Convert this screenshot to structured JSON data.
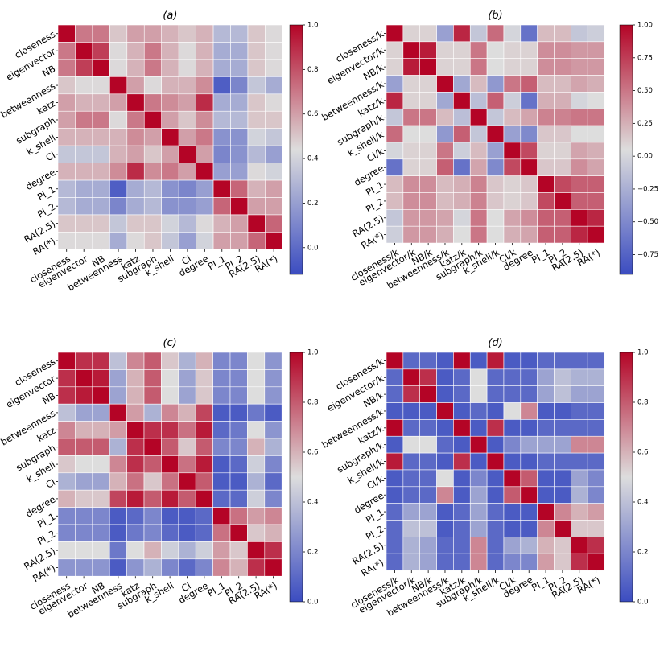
{
  "colors": {
    "low": "#3b4cc0",
    "mid": "#dddddd",
    "high": "#b40426",
    "grid": "#ffffff"
  },
  "chart_data": [
    {
      "type": "heatmap",
      "title": "(a)",
      "labels": [
        "closeness",
        "eigenvector",
        "NB",
        "betweenness",
        "katz",
        "subgraph",
        "k_shell",
        "CI",
        "degree",
        "PI_1",
        "PI_2",
        "RA(2.5)",
        "RA(*)"
      ],
      "colorbar": {
        "min": -0.12,
        "max": 1.0,
        "ticks": [
          0.0,
          0.2,
          0.4,
          0.6,
          0.8,
          1.0
        ],
        "tick_labels": [
          "0.0",
          "0.2",
          "0.4",
          "0.6",
          "0.8",
          "1.0"
        ]
      },
      "matrix": [
        [
          1.0,
          0.7,
          0.7,
          0.5,
          0.6,
          0.6,
          0.55,
          0.5,
          0.55,
          0.3,
          0.3,
          0.5,
          0.45
        ],
        [
          0.7,
          1.0,
          0.85,
          0.45,
          0.55,
          0.7,
          0.55,
          0.45,
          0.55,
          0.25,
          0.25,
          0.5,
          0.45
        ],
        [
          0.7,
          0.85,
          1.0,
          0.45,
          0.55,
          0.7,
          0.55,
          0.45,
          0.55,
          0.25,
          0.25,
          0.5,
          0.45
        ],
        [
          0.5,
          0.45,
          0.45,
          1.0,
          0.6,
          0.45,
          0.55,
          0.55,
          0.65,
          -0.05,
          0.1,
          0.35,
          0.25
        ],
        [
          0.6,
          0.55,
          0.55,
          0.6,
          1.0,
          0.7,
          0.65,
          0.6,
          0.9,
          0.25,
          0.25,
          0.5,
          0.45
        ],
        [
          0.6,
          0.7,
          0.7,
          0.45,
          0.7,
          1.0,
          0.6,
          0.5,
          0.65,
          0.3,
          0.3,
          0.5,
          0.5
        ],
        [
          0.55,
          0.55,
          0.55,
          0.55,
          0.65,
          0.6,
          1.0,
          0.6,
          0.7,
          0.15,
          0.15,
          0.4,
          0.35
        ],
        [
          0.35,
          0.35,
          0.35,
          0.55,
          0.6,
          0.5,
          0.6,
          1.0,
          0.6,
          0.1,
          0.15,
          0.3,
          0.2
        ],
        [
          0.55,
          0.55,
          0.55,
          0.65,
          0.9,
          0.65,
          0.7,
          0.6,
          1.0,
          0.2,
          0.2,
          0.45,
          0.4
        ],
        [
          0.3,
          0.25,
          0.25,
          -0.05,
          0.25,
          0.3,
          0.15,
          0.1,
          0.2,
          1.0,
          0.75,
          0.55,
          0.6
        ],
        [
          0.3,
          0.25,
          0.25,
          0.1,
          0.25,
          0.3,
          0.15,
          0.15,
          0.2,
          0.75,
          1.0,
          0.6,
          0.6
        ],
        [
          0.5,
          0.5,
          0.5,
          0.35,
          0.5,
          0.5,
          0.4,
          0.3,
          0.45,
          0.55,
          0.6,
          1.0,
          0.75
        ],
        [
          0.45,
          0.45,
          0.45,
          0.25,
          0.45,
          0.5,
          0.35,
          0.2,
          0.4,
          0.6,
          0.6,
          0.75,
          1.0
        ]
      ]
    },
    {
      "type": "heatmap",
      "title": "(b)",
      "labels": [
        "closeness/k",
        "eigenvector/k",
        "NB/k",
        "betweenness/k",
        "katz/k",
        "subgraph/k",
        "k_shell/k",
        "CI/k",
        "degree",
        "PI_1",
        "PI_2",
        "RA(2.5)",
        "RA(*)"
      ],
      "colorbar": {
        "min": -0.9,
        "max": 1.0,
        "ticks": [
          -0.75,
          -0.5,
          -0.25,
          0.0,
          0.25,
          0.5,
          0.75,
          1.0
        ],
        "tick_labels": [
          "−0.75",
          "−0.50",
          "−0.25",
          "0.00",
          "0.25",
          "0.50",
          "0.75",
          "1.00"
        ]
      },
      "matrix": [
        [
          1.0,
          0.1,
          0.1,
          -0.35,
          0.85,
          -0.1,
          0.55,
          0.0,
          -0.65,
          0.2,
          0.2,
          -0.1,
          -0.05
        ],
        [
          0.1,
          1.0,
          0.9,
          0.1,
          0.1,
          0.5,
          0.05,
          0.1,
          0.1,
          0.4,
          0.4,
          0.35,
          0.35
        ],
        [
          0.1,
          0.9,
          1.0,
          0.1,
          0.1,
          0.5,
          0.05,
          0.1,
          0.1,
          0.4,
          0.4,
          0.35,
          0.35
        ],
        [
          -0.35,
          0.1,
          0.1,
          1.0,
          -0.3,
          0.2,
          -0.4,
          0.5,
          0.6,
          0.2,
          0.2,
          0.3,
          0.25
        ],
        [
          0.85,
          0.1,
          0.1,
          -0.3,
          1.0,
          -0.15,
          0.6,
          -0.05,
          -0.65,
          0.25,
          0.25,
          0.0,
          0.05
        ],
        [
          -0.1,
          0.5,
          0.5,
          0.2,
          -0.15,
          1.0,
          -0.1,
          0.2,
          0.3,
          0.45,
          0.45,
          0.5,
          0.5
        ],
        [
          0.55,
          0.05,
          0.05,
          -0.4,
          0.6,
          -0.1,
          1.0,
          -0.35,
          -0.5,
          0.15,
          0.15,
          0.05,
          0.05
        ],
        [
          0.0,
          0.1,
          0.1,
          0.5,
          -0.05,
          0.2,
          -0.35,
          1.0,
          0.7,
          0.1,
          0.1,
          0.3,
          0.25
        ],
        [
          -0.65,
          0.1,
          0.1,
          0.6,
          -0.65,
          0.3,
          -0.5,
          0.7,
          1.0,
          0.15,
          0.15,
          0.4,
          0.3
        ],
        [
          0.2,
          0.4,
          0.4,
          0.2,
          0.25,
          0.45,
          0.15,
          0.1,
          0.15,
          1.0,
          0.7,
          0.6,
          0.6
        ],
        [
          0.2,
          0.4,
          0.4,
          0.2,
          0.25,
          0.45,
          0.15,
          0.1,
          0.15,
          0.7,
          1.0,
          0.6,
          0.6
        ],
        [
          -0.1,
          0.35,
          0.35,
          0.3,
          0.0,
          0.5,
          0.05,
          0.3,
          0.4,
          0.6,
          0.6,
          1.0,
          0.85
        ],
        [
          -0.05,
          0.35,
          0.35,
          0.25,
          0.05,
          0.5,
          0.05,
          0.25,
          0.3,
          0.6,
          0.6,
          0.85,
          1.0
        ]
      ]
    },
    {
      "type": "heatmap",
      "title": "(c)",
      "labels": [
        "closeness",
        "eigenvector",
        "NB",
        "betweenness",
        "katz",
        "subgraph",
        "k_shell",
        "CI",
        "degree",
        "PI_1",
        "PI_2",
        "RA(2.5)",
        "RA(*)"
      ],
      "colorbar": {
        "min": 0.0,
        "max": 1.0,
        "ticks": [
          0.0,
          0.2,
          0.4,
          0.6,
          0.8,
          1.0
        ],
        "tick_labels": [
          "0.0",
          "0.2",
          "0.4",
          "0.6",
          "0.8",
          "1.0"
        ]
      },
      "matrix": [
        [
          1.0,
          0.9,
          0.9,
          0.4,
          0.7,
          0.8,
          0.55,
          0.35,
          0.6,
          0.2,
          0.2,
          0.5,
          0.25
        ],
        [
          0.9,
          1.0,
          0.95,
          0.3,
          0.6,
          0.8,
          0.5,
          0.3,
          0.55,
          0.2,
          0.2,
          0.5,
          0.25
        ],
        [
          0.9,
          0.95,
          1.0,
          0.3,
          0.6,
          0.8,
          0.5,
          0.3,
          0.55,
          0.2,
          0.2,
          0.5,
          0.25
        ],
        [
          0.4,
          0.3,
          0.3,
          1.0,
          0.65,
          0.35,
          0.7,
          0.6,
          0.85,
          0.05,
          0.05,
          0.15,
          0.05
        ],
        [
          0.7,
          0.6,
          0.6,
          0.65,
          1.0,
          0.9,
          0.9,
          0.75,
          0.95,
          0.1,
          0.15,
          0.5,
          0.25
        ],
        [
          0.8,
          0.8,
          0.8,
          0.35,
          0.9,
          1.0,
          0.8,
          0.55,
          0.8,
          0.2,
          0.2,
          0.6,
          0.35
        ],
        [
          0.55,
          0.5,
          0.5,
          0.7,
          0.9,
          0.8,
          1.0,
          0.75,
          0.95,
          0.05,
          0.1,
          0.45,
          0.2
        ],
        [
          0.35,
          0.3,
          0.3,
          0.6,
          0.75,
          0.55,
          0.75,
          1.0,
          0.8,
          0.05,
          0.05,
          0.35,
          0.1
        ],
        [
          0.6,
          0.55,
          0.55,
          0.85,
          0.95,
          0.8,
          0.95,
          0.8,
          1.0,
          0.1,
          0.1,
          0.45,
          0.2
        ],
        [
          0.2,
          0.2,
          0.2,
          0.05,
          0.1,
          0.2,
          0.05,
          0.05,
          0.1,
          1.0,
          0.75,
          0.65,
          0.7
        ],
        [
          0.2,
          0.2,
          0.2,
          0.05,
          0.15,
          0.2,
          0.1,
          0.05,
          0.1,
          0.75,
          1.0,
          0.55,
          0.6
        ],
        [
          0.5,
          0.5,
          0.5,
          0.15,
          0.5,
          0.6,
          0.45,
          0.35,
          0.45,
          0.65,
          0.55,
          1.0,
          0.9
        ],
        [
          0.25,
          0.25,
          0.25,
          0.05,
          0.25,
          0.35,
          0.2,
          0.1,
          0.2,
          0.7,
          0.6,
          0.9,
          1.0
        ]
      ]
    },
    {
      "type": "heatmap",
      "title": "(d)",
      "labels": [
        "closeness/k",
        "eigenvector/k",
        "NB/k",
        "betweenness/k",
        "katz/k",
        "subgraph/k",
        "k_shell/k",
        "CI/k",
        "degree",
        "PI_1",
        "PI_2",
        "RA(2.5)",
        "RA(*)"
      ],
      "colorbar": {
        "min": 0.0,
        "max": 1.0,
        "ticks": [
          0.0,
          0.2,
          0.4,
          0.6,
          0.8,
          1.0
        ],
        "tick_labels": [
          "0.0",
          "0.2",
          "0.4",
          "0.6",
          "0.8",
          "1.0"
        ]
      },
      "matrix": [
        [
          1.0,
          0.1,
          0.1,
          0.05,
          1.0,
          0.05,
          0.95,
          0.05,
          0.05,
          0.1,
          0.1,
          0.1,
          0.1
        ],
        [
          0.1,
          1.0,
          0.9,
          0.05,
          0.1,
          0.5,
          0.1,
          0.1,
          0.1,
          0.3,
          0.4,
          0.35,
          0.35
        ],
        [
          0.1,
          0.9,
          1.0,
          0.05,
          0.1,
          0.5,
          0.1,
          0.1,
          0.1,
          0.3,
          0.4,
          0.3,
          0.3
        ],
        [
          0.05,
          0.05,
          0.05,
          1.0,
          0.05,
          0.1,
          0.05,
          0.5,
          0.7,
          0.05,
          0.05,
          0.1,
          0.1
        ],
        [
          1.0,
          0.1,
          0.1,
          0.05,
          1.0,
          0.05,
          0.9,
          0.05,
          0.05,
          0.1,
          0.1,
          0.1,
          0.1
        ],
        [
          0.05,
          0.5,
          0.5,
          0.1,
          0.05,
          1.0,
          0.05,
          0.2,
          0.3,
          0.3,
          0.3,
          0.7,
          0.7
        ],
        [
          0.95,
          0.1,
          0.1,
          0.05,
          0.9,
          0.05,
          1.0,
          0.05,
          0.05,
          0.1,
          0.1,
          0.1,
          0.1
        ],
        [
          0.05,
          0.1,
          0.1,
          0.5,
          0.05,
          0.2,
          0.05,
          1.0,
          0.8,
          0.05,
          0.05,
          0.3,
          0.2
        ],
        [
          0.05,
          0.1,
          0.1,
          0.7,
          0.05,
          0.3,
          0.05,
          0.8,
          1.0,
          0.05,
          0.05,
          0.35,
          0.2
        ],
        [
          0.1,
          0.3,
          0.3,
          0.05,
          0.1,
          0.3,
          0.1,
          0.05,
          0.05,
          1.0,
          0.7,
          0.6,
          0.65
        ],
        [
          0.1,
          0.4,
          0.4,
          0.05,
          0.1,
          0.3,
          0.1,
          0.05,
          0.05,
          0.7,
          1.0,
          0.55,
          0.55
        ],
        [
          0.1,
          0.35,
          0.3,
          0.1,
          0.1,
          0.7,
          0.1,
          0.3,
          0.35,
          0.6,
          0.55,
          1.0,
          0.9
        ],
        [
          0.1,
          0.35,
          0.3,
          0.1,
          0.1,
          0.7,
          0.1,
          0.2,
          0.2,
          0.65,
          0.55,
          0.9,
          1.0
        ]
      ]
    }
  ]
}
